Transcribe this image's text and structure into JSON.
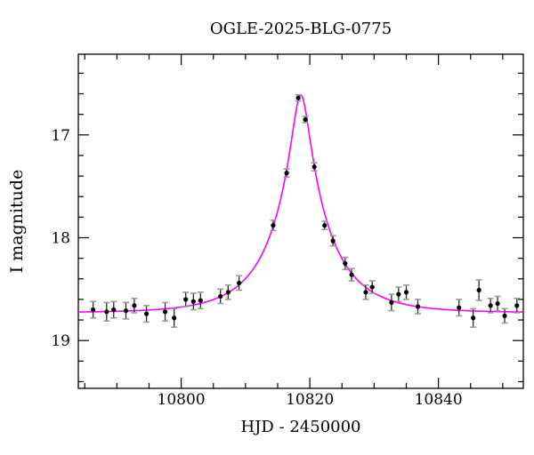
{
  "figure": {
    "title": "OGLE-2025-BLG-0775",
    "x_axis_label": "HJD - 2450000",
    "y_axis_label": "I magnitude"
  },
  "chart_data": {
    "type": "scatter",
    "title": "OGLE-2025-BLG-0775",
    "xlabel": "HJD - 2450000",
    "ylabel": "I magnitude",
    "x_range": [
      10784.0,
      10853.2
    ],
    "y_range": [
      16.215,
      19.465
    ],
    "y_inverted": true,
    "grid": false,
    "legend": "none",
    "x_major_ticks": [
      10800,
      10820,
      10840
    ],
    "x_minor_tick_step": 5,
    "y_major_ticks": [
      17,
      18,
      19
    ],
    "y_minor_tick_step": 0.2,
    "colors": {
      "model_curve": "#ff00ff",
      "data_point": "#000000",
      "error_bar": "#2b2b2b",
      "error_cap": "#9a9a9a",
      "axis": "#000000"
    },
    "model": {
      "kind": "paczynski-microlensing",
      "t0": 10818.6,
      "tE": 8.9,
      "u0": 0.143,
      "baseline_mag": 18.73,
      "peak_mag": 16.61
    },
    "points": [
      {
        "t": 10786.3,
        "mag": 18.7,
        "err": 0.08
      },
      {
        "t": 10788.4,
        "mag": 18.72,
        "err": 0.09
      },
      {
        "t": 10789.5,
        "mag": 18.7,
        "err": 0.08
      },
      {
        "t": 10791.4,
        "mag": 18.71,
        "err": 0.08
      },
      {
        "t": 10792.7,
        "mag": 18.66,
        "err": 0.07
      },
      {
        "t": 10794.6,
        "mag": 18.74,
        "err": 0.08
      },
      {
        "t": 10797.5,
        "mag": 18.72,
        "err": 0.09
      },
      {
        "t": 10798.9,
        "mag": 18.78,
        "err": 0.09
      },
      {
        "t": 10800.7,
        "mag": 18.6,
        "err": 0.07
      },
      {
        "t": 10801.9,
        "mag": 18.62,
        "err": 0.08
      },
      {
        "t": 10803.0,
        "mag": 18.61,
        "err": 0.08
      },
      {
        "t": 10806.1,
        "mag": 18.57,
        "err": 0.07
      },
      {
        "t": 10807.3,
        "mag": 18.53,
        "err": 0.07
      },
      {
        "t": 10809.0,
        "mag": 18.44,
        "err": 0.07
      },
      {
        "t": 10814.3,
        "mag": 17.88,
        "err": 0.05
      },
      {
        "t": 10816.4,
        "mag": 17.37,
        "err": 0.04
      },
      {
        "t": 10818.2,
        "mag": 16.64,
        "err": 0.03
      },
      {
        "t": 10819.3,
        "mag": 16.85,
        "err": 0.03
      },
      {
        "t": 10820.7,
        "mag": 17.31,
        "err": 0.04
      },
      {
        "t": 10822.3,
        "mag": 17.88,
        "err": 0.04
      },
      {
        "t": 10823.6,
        "mag": 18.03,
        "err": 0.05
      },
      {
        "t": 10825.5,
        "mag": 18.25,
        "err": 0.06
      },
      {
        "t": 10826.5,
        "mag": 18.36,
        "err": 0.06
      },
      {
        "t": 10828.7,
        "mag": 18.53,
        "err": 0.07
      },
      {
        "t": 10829.7,
        "mag": 18.48,
        "err": 0.06
      },
      {
        "t": 10832.7,
        "mag": 18.63,
        "err": 0.08
      },
      {
        "t": 10833.8,
        "mag": 18.55,
        "err": 0.07
      },
      {
        "t": 10835.0,
        "mag": 18.53,
        "err": 0.07
      },
      {
        "t": 10836.8,
        "mag": 18.67,
        "err": 0.07
      },
      {
        "t": 10843.2,
        "mag": 18.68,
        "err": 0.08
      },
      {
        "t": 10845.4,
        "mag": 18.78,
        "err": 0.09
      },
      {
        "t": 10846.3,
        "mag": 18.51,
        "err": 0.1
      },
      {
        "t": 10848.1,
        "mag": 18.66,
        "err": 0.07
      },
      {
        "t": 10849.2,
        "mag": 18.64,
        "err": 0.07
      },
      {
        "t": 10850.3,
        "mag": 18.76,
        "err": 0.07
      },
      {
        "t": 10852.2,
        "mag": 18.66,
        "err": 0.07
      }
    ]
  }
}
